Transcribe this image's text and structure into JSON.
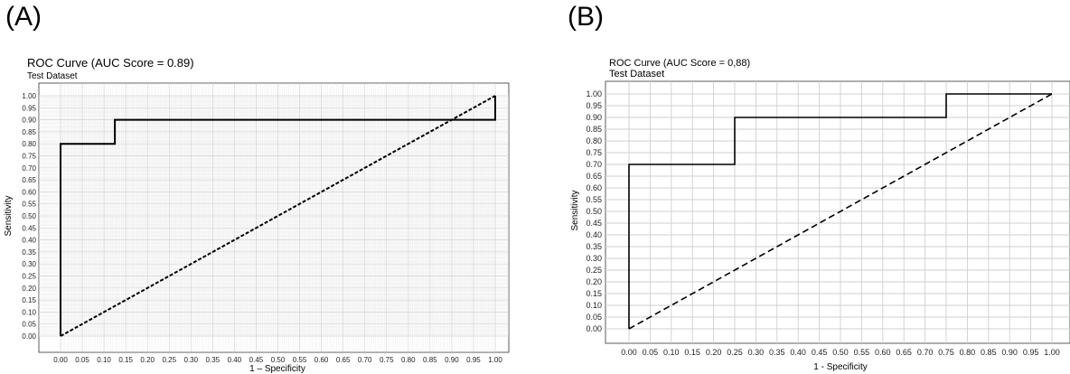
{
  "panels": [
    {
      "letter": "(A)"
    },
    {
      "letter": "(B)"
    }
  ],
  "chart_data": [
    {
      "type": "line",
      "title": "ROC Curve (AUC Score = 0.89)",
      "subtitle": "Test Dataset",
      "xlabel": "1 – Specificity",
      "ylabel": "Sensitivity",
      "xlim": [
        0,
        1
      ],
      "ylim": [
        0,
        1
      ],
      "xticks": [
        "0.00",
        "0.05",
        "0.10",
        "0.15",
        "0.20",
        "0.25",
        "0.30",
        "0.35",
        "0.40",
        "0.45",
        "0.50",
        "0.55",
        "0.60",
        "0.65",
        "0.70",
        "0.75",
        "0.80",
        "0.85",
        "0.90",
        "0.95",
        "1.00"
      ],
      "yticks": [
        "0.00",
        "0.05",
        "0.10",
        "0.15",
        "0.20",
        "0.25",
        "0.30",
        "0.35",
        "0.40",
        "0.45",
        "0.50",
        "0.55",
        "0.60",
        "0.65",
        "0.70",
        "0.75",
        "0.80",
        "0.85",
        "0.90",
        "0.95",
        "1.00"
      ],
      "grid": "fine",
      "series": [
        {
          "style": "solid",
          "x": [
            0,
            0,
            0.125,
            0.125,
            1,
            1
          ],
          "y": [
            0,
            0.8,
            0.8,
            0.9,
            0.9,
            1.0
          ]
        },
        {
          "style": "dashed",
          "x": [
            0,
            1
          ],
          "y": [
            0,
            1
          ]
        }
      ]
    },
    {
      "type": "line",
      "title": "ROC Curve (AUC Score = 0,88)",
      "subtitle": "Test Dataset",
      "xlabel": "1 - Specificity",
      "ylabel": "Sensitivity",
      "xlim": [
        0,
        1
      ],
      "ylim": [
        0,
        1
      ],
      "xticks": [
        "0.00",
        "0.05",
        "0.10",
        "0.15",
        "0.20",
        "0.25",
        "0.30",
        "0.35",
        "0.40",
        "0.45",
        "0.50",
        "0.55",
        "0.60",
        "0.65",
        "0.70",
        "0.75",
        "0.80",
        "0.85",
        "0.90",
        "0.95",
        "1.00"
      ],
      "yticks": [
        "0.00",
        "0.05",
        "0.10",
        "0.15",
        "0.20",
        "0.25",
        "0.30",
        "0.35",
        "0.40",
        "0.45",
        "0.50",
        "0.55",
        "0.60",
        "0.65",
        "0.70",
        "0.75",
        "0.80",
        "0.85",
        "0.90",
        "0.95",
        "1.00"
      ],
      "grid": "major",
      "series": [
        {
          "style": "solid",
          "x": [
            0,
            0,
            0.25,
            0.25,
            0.75,
            0.75,
            1
          ],
          "y": [
            0,
            0.7,
            0.7,
            0.9,
            0.9,
            1.0,
            1.0
          ]
        },
        {
          "style": "dashed",
          "x": [
            0,
            1
          ],
          "y": [
            0,
            1
          ]
        }
      ]
    }
  ]
}
